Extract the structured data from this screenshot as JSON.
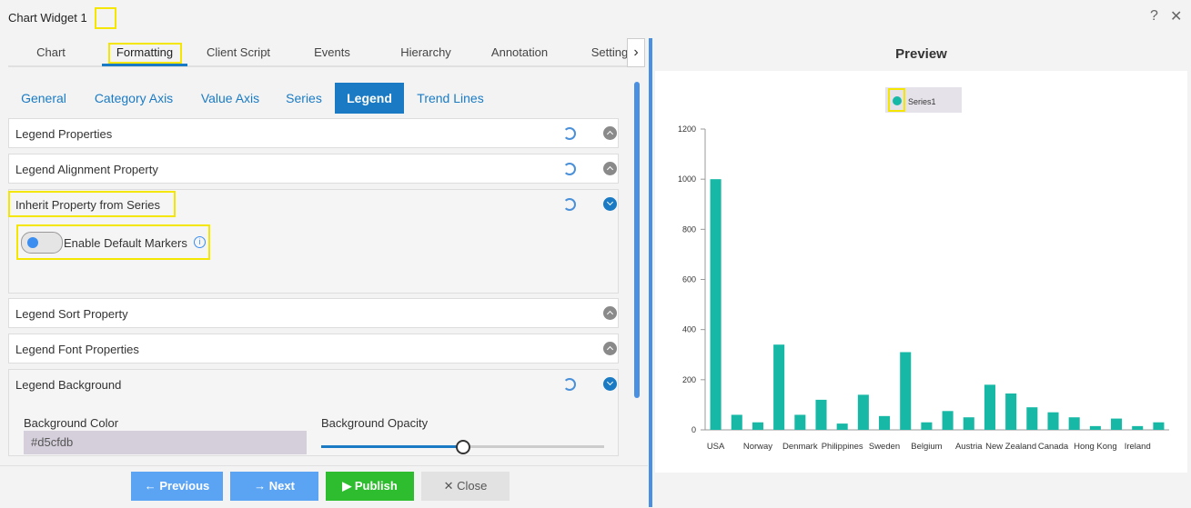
{
  "header": {
    "title": "Chart Widget 1"
  },
  "tabs": [
    "Chart",
    "Formatting",
    "Client Script",
    "Events",
    "Hierarchy",
    "Annotation",
    "Setting"
  ],
  "subtabs": [
    "General",
    "Category Axis",
    "Value Axis",
    "Series",
    "Legend",
    "Trend Lines"
  ],
  "sections": [
    "Legend Properties",
    "Legend Alignment Property",
    "Inherit Property from Series",
    "Legend Sort Property",
    "Legend Font Properties",
    "Legend Background"
  ],
  "toggle": {
    "label": "Enable Default Markers"
  },
  "background": {
    "color_label": "Background Color",
    "color_value": "#d5cfdb",
    "opacity_label": "Background Opacity"
  },
  "buttons": [
    "Previous",
    "Next",
    "Publish",
    "Close"
  ],
  "preview": {
    "title": "Preview"
  },
  "chart_data": {
    "type": "bar",
    "categories": [
      "USA",
      null,
      "Norway",
      null,
      "Denmark",
      null,
      "Philippines",
      null,
      "Sweden",
      null,
      "Belgium",
      null,
      "Austria",
      null,
      "New Zealand",
      null,
      "Canada",
      null,
      "Hong Kong",
      null,
      "Ireland",
      null
    ],
    "series": [
      {
        "name": "Series1",
        "color": "#17b9a6",
        "values": [
          1000,
          60,
          30,
          340,
          60,
          120,
          25,
          140,
          55,
          310,
          30,
          75,
          50,
          180,
          145,
          90,
          70,
          50,
          15,
          45,
          15,
          30
        ]
      }
    ],
    "ylim": [
      0,
      1200
    ],
    "yticks": [
      0,
      200,
      400,
      600,
      800,
      1000,
      1200
    ],
    "legend": "top"
  }
}
